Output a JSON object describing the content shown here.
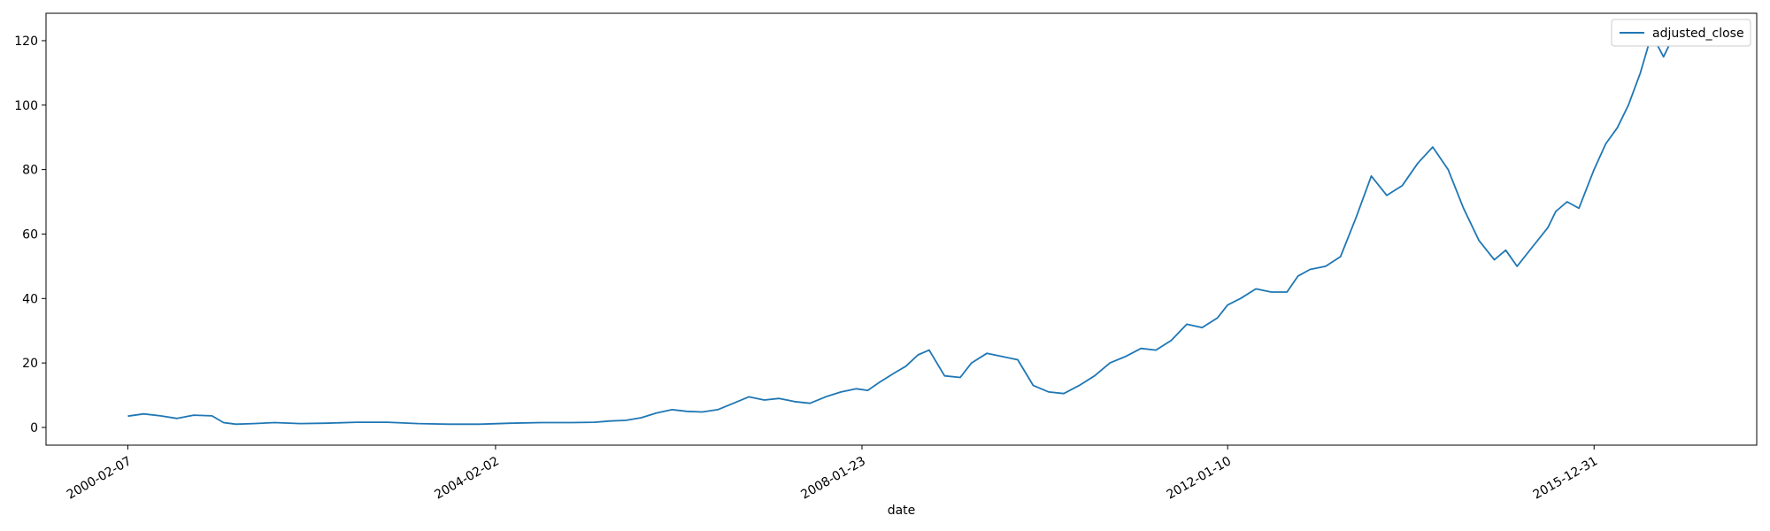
{
  "chart_data": {
    "type": "line",
    "title": "",
    "xlabel": "date",
    "ylabel": "",
    "x_is_date": true,
    "xlim": [
      "1999-03-20",
      "2017-10-05"
    ],
    "ylim": [
      -5.5,
      128.5
    ],
    "x_ticks": [
      "2000-02-07",
      "2004-02-02",
      "2008-01-23",
      "2012-01-10",
      "2015-12-31"
    ],
    "y_ticks": [
      0,
      20,
      40,
      60,
      80,
      100,
      120
    ],
    "grid": false,
    "legend": {
      "position": "top-right"
    },
    "series": [
      {
        "name": "adjusted_close",
        "color": "#1f77b4",
        "x": [
          "2000-02-07",
          "2000-04-10",
          "2000-06-15",
          "2000-08-20",
          "2000-10-25",
          "2001-01-05",
          "2001-02-20",
          "2001-04-10",
          "2001-06-20",
          "2001-09-10",
          "2001-12-20",
          "2002-04-01",
          "2002-08-01",
          "2002-12-01",
          "2003-04-01",
          "2003-08-01",
          "2003-12-01",
          "2004-04-01",
          "2004-08-01",
          "2004-12-01",
          "2005-03-01",
          "2005-05-01",
          "2005-07-01",
          "2005-09-01",
          "2005-11-01",
          "2006-01-01",
          "2006-03-01",
          "2006-05-01",
          "2006-07-01",
          "2006-09-01",
          "2006-11-01",
          "2007-01-01",
          "2007-03-01",
          "2007-05-01",
          "2007-07-01",
          "2007-09-01",
          "2007-11-01",
          "2008-01-01",
          "2008-02-15",
          "2008-04-01",
          "2008-06-01",
          "2008-07-15",
          "2008-09-01",
          "2008-10-15",
          "2008-12-15",
          "2009-02-15",
          "2009-04-01",
          "2009-06-01",
          "2009-08-01",
          "2009-10-01",
          "2009-12-01",
          "2010-02-01",
          "2010-04-01",
          "2010-06-01",
          "2010-08-01",
          "2010-10-01",
          "2010-12-01",
          "2011-02-01",
          "2011-04-01",
          "2011-06-01",
          "2011-08-01",
          "2011-10-01",
          "2011-12-01",
          "2012-01-10",
          "2012-03-01",
          "2012-05-01",
          "2012-07-01",
          "2012-09-01",
          "2012-10-15",
          "2012-12-01",
          "2013-02-01",
          "2013-04-01",
          "2013-06-01",
          "2013-08-01",
          "2013-10-01",
          "2013-12-01",
          "2014-02-01",
          "2014-04-01",
          "2014-06-01",
          "2014-08-01",
          "2014-10-01",
          "2014-12-01",
          "2015-01-15",
          "2015-03-01",
          "2015-05-01",
          "2015-07-01",
          "2015-08-01",
          "2015-09-15",
          "2015-11-01",
          "2015-12-31",
          "2016-02-15",
          "2016-04-01",
          "2016-05-15",
          "2016-07-01",
          "2016-08-15",
          "2016-10-01",
          "2016-11-01"
        ],
        "values": [
          3.5,
          4.2,
          3.6,
          2.8,
          3.8,
          3.6,
          1.5,
          1.0,
          1.2,
          1.5,
          1.2,
          1.3,
          1.6,
          1.6,
          1.2,
          1.0,
          1.0,
          1.3,
          1.5,
          1.5,
          1.6,
          2.0,
          2.2,
          3.0,
          4.5,
          5.5,
          5.0,
          4.8,
          5.5,
          7.5,
          9.5,
          8.5,
          9.0,
          8.0,
          7.5,
          9.5,
          11.0,
          12.0,
          11.5,
          14.0,
          17.0,
          19.0,
          22.5,
          24.0,
          16.0,
          15.5,
          20.0,
          23.0,
          22.0,
          21.0,
          13.0,
          11.0,
          10.5,
          13.0,
          16.0,
          20.0,
          22.0,
          24.5,
          24.0,
          27.0,
          32.0,
          31.0,
          34.0,
          38.0,
          40.0,
          43.0,
          42.0,
          42.0,
          47.0,
          49.0,
          50.0,
          53.0,
          65.0,
          78.0,
          72.0,
          75.0,
          82.0,
          87.0,
          80.0,
          68.0,
          58.0,
          52.0,
          55.0,
          50.0,
          56.0,
          62.0,
          67.0,
          70.0,
          68.0,
          80.0,
          88.0,
          93.0,
          100.0,
          110.0,
          122.0,
          115.0,
          120.0
        ]
      }
    ]
  }
}
